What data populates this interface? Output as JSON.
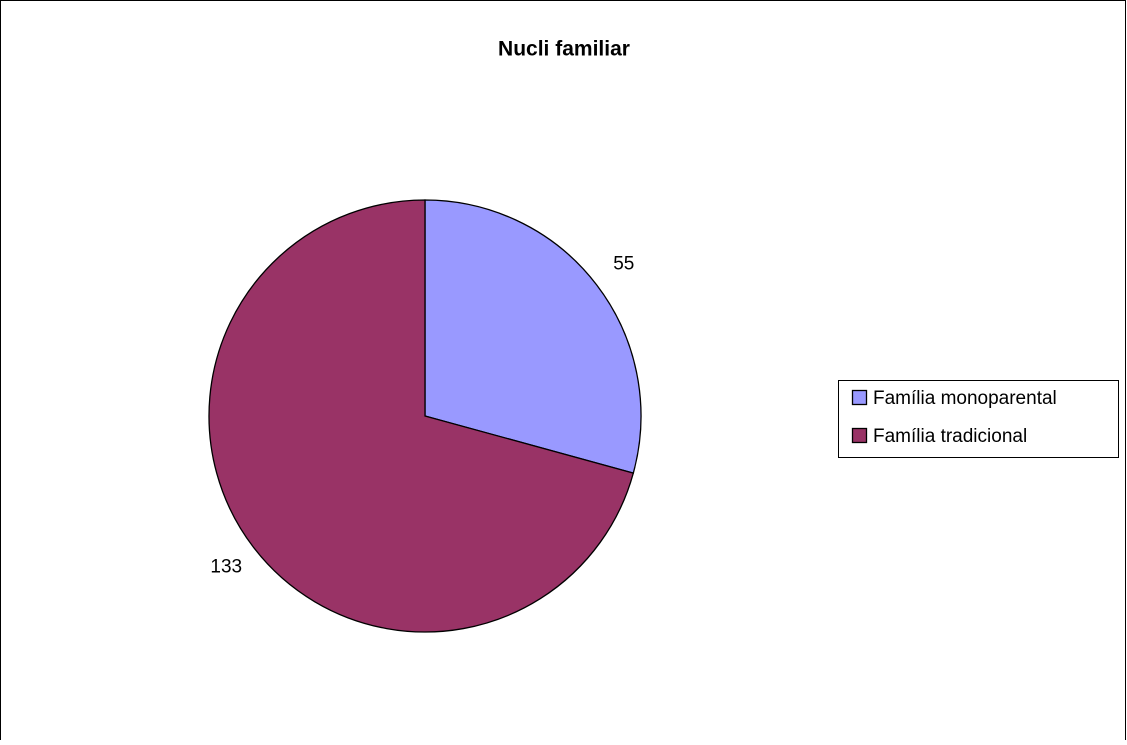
{
  "chart_data": {
    "type": "pie",
    "title": "Nucli familiar",
    "categories": [
      "Família monoparental",
      "Família tradicional"
    ],
    "values": [
      55,
      133
    ],
    "colors": [
      "#9999ff",
      "#993366"
    ],
    "legend": "right"
  }
}
